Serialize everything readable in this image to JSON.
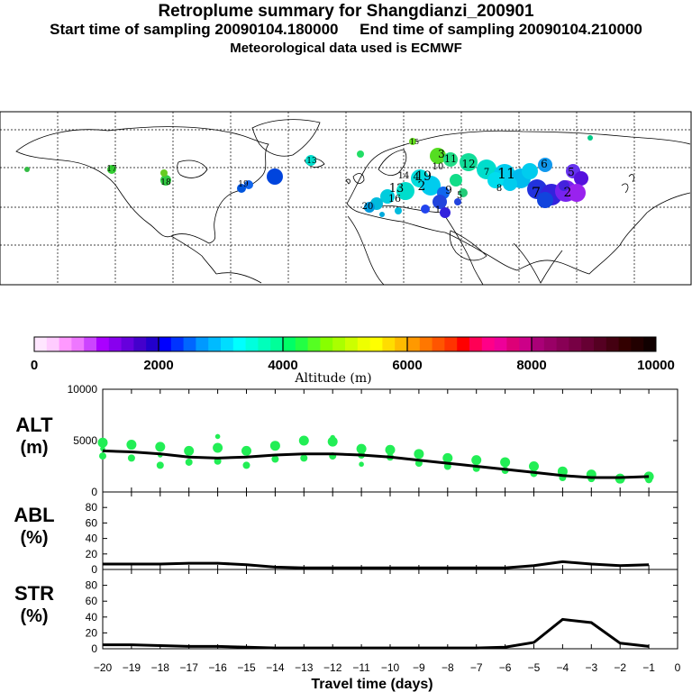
{
  "header": {
    "title": "Retroplume summary for Shangdianzi_200901",
    "sampling_line": "Start time of sampling 20090104.180000     End time of sampling 20090104.210000",
    "met_line": "Meteorological data used is ECMWF"
  },
  "map": {
    "plume_labels": [
      "1",
      "2",
      "3",
      "4",
      "5",
      "6",
      "7",
      "8",
      "9",
      "10",
      "11",
      "12",
      "13",
      "14",
      "15",
      "16",
      "17",
      "18",
      "19",
      "20"
    ]
  },
  "colorbar": {
    "title": "Altitude (m)",
    "tick_labels": [
      "0",
      "2000",
      "4000",
      "6000",
      "8000",
      "10000"
    ]
  },
  "chart_data": [
    {
      "type": "line",
      "name": "ALT",
      "ylabel": "ALT\n(m)",
      "ylim": [
        0,
        10000
      ],
      "yticks": [
        0,
        5000,
        10000
      ],
      "x": [
        -20,
        -19,
        -18,
        -17,
        -16,
        -15,
        -14,
        -13,
        -12,
        -11,
        -10,
        -9,
        -8,
        -7,
        -6,
        -5,
        -4,
        -3,
        -2,
        -1
      ],
      "series": [
        {
          "name": "median",
          "values": [
            4000,
            3900,
            3700,
            3400,
            3300,
            3400,
            3600,
            3700,
            3700,
            3600,
            3400,
            3100,
            2800,
            2500,
            2200,
            1900,
            1600,
            1400,
            1400,
            1500
          ]
        }
      ],
      "point_clusters": [
        [
          4800,
          3500,
          4200
        ],
        [
          4600,
          3300
        ],
        [
          4400,
          2600,
          3600
        ],
        [
          4000,
          2900
        ],
        [
          4300,
          3000,
          5400
        ],
        [
          4000,
          2600
        ],
        [
          4500,
          3200
        ],
        [
          5000,
          3300
        ],
        [
          4900,
          3500,
          5300
        ],
        [
          4200,
          3600,
          2700
        ],
        [
          4100,
          3400
        ],
        [
          3700,
          2800
        ],
        [
          3300,
          2500
        ],
        [
          3100,
          2300
        ],
        [
          2900,
          2100
        ],
        [
          2500,
          1800
        ],
        [
          2000,
          1400
        ],
        [
          1700,
          1300
        ],
        [
          1300
        ],
        [
          1500,
          1200
        ]
      ],
      "point_color": "#22ee55",
      "line_color": "#000000"
    },
    {
      "type": "line",
      "name": "ABL",
      "ylabel": "ABL\n(%)",
      "ylim": [
        0,
        100
      ],
      "yticks": [
        0,
        20,
        40,
        60,
        80
      ],
      "x": [
        -20,
        -19,
        -18,
        -17,
        -16,
        -15,
        -14,
        -13,
        -12,
        -11,
        -10,
        -9,
        -8,
        -7,
        -6,
        -5,
        -4,
        -3,
        -2,
        -1
      ],
      "series": [
        {
          "name": "ABL",
          "values": [
            7,
            7,
            7,
            8,
            8,
            6,
            3,
            2,
            2,
            2,
            2,
            2,
            2,
            2,
            2,
            5,
            10,
            7,
            5,
            6
          ]
        }
      ]
    },
    {
      "type": "line",
      "name": "STR",
      "ylabel": "STR\n(%)",
      "ylim": [
        0,
        100
      ],
      "yticks": [
        0,
        20,
        40,
        60,
        80
      ],
      "x": [
        -20,
        -19,
        -18,
        -17,
        -16,
        -15,
        -14,
        -13,
        -12,
        -11,
        -10,
        -9,
        -8,
        -7,
        -6,
        -5,
        -4,
        -3,
        -2,
        -1
      ],
      "series": [
        {
          "name": "STR",
          "values": [
            5,
            5,
            4,
            3,
            3,
            2,
            1,
            1,
            1,
            1,
            1,
            1,
            1,
            1,
            2,
            8,
            37,
            33,
            7,
            3
          ]
        }
      ],
      "xlabel": "Travel time (days)",
      "xlim": [
        -20,
        0
      ],
      "xtick_labels": [
        "−20",
        "−19",
        "−18",
        "−17",
        "−16",
        "−15",
        "−14",
        "−13",
        "−12",
        "−11",
        "−10",
        "−9",
        "−8",
        "−7",
        "−6",
        "−5",
        "−4",
        "−3",
        "−2",
        "−1",
        "0"
      ]
    }
  ]
}
